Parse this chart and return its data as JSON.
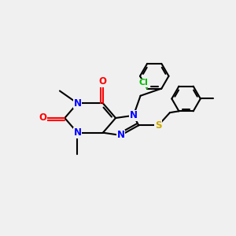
{
  "bg_color": "#f0f0f0",
  "atom_colors": {
    "N": "#0000ff",
    "O": "#ff0000",
    "S": "#ccaa00",
    "Cl": "#00bb00"
  },
  "bond_color": "#000000",
  "bond_width": 1.5
}
